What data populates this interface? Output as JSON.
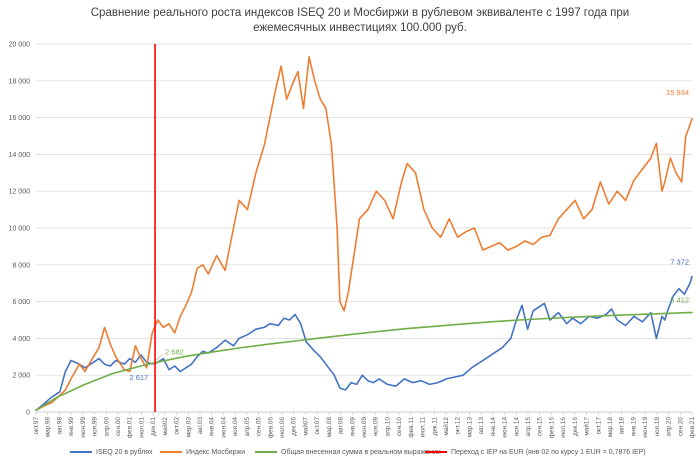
{
  "chart_data": {
    "type": "line",
    "title": "Сравнение реального роста индексов ISEQ 20 и Мосбиржи в рублевом эквиваленте с 1997 года при ежемесячных инвестициях 100.000 руб.",
    "title_lines": [
      "Сравнение реального роста индексов ISEQ 20 и Мосбиржи в рублевом эквиваленте с 1997 года при",
      "ежемесячных инвестициях 100.000 руб."
    ],
    "ylim": [
      0,
      20000
    ],
    "y_ticks": [
      "0",
      "2 000",
      "4 000",
      "6 000",
      "8 000",
      "10 000",
      "12 000",
      "14 000",
      "16 000",
      "18 000",
      "20 000"
    ],
    "x_range": [
      1997.75,
      2021.17
    ],
    "x_ticks": [
      "окт.97",
      "мар.98",
      "авг.98",
      "янв.99",
      "июн.99",
      "ноя.99",
      "апр.00",
      "сен.00",
      "фев.01",
      "июл.01",
      "дек.01",
      "май02",
      "окт.02",
      "мар.03",
      "авг.03",
      "янв.04",
      "июн.04",
      "ноя.04",
      "апр.05",
      "сен.05",
      "фев.06",
      "июл.06",
      "дек.06",
      "май07",
      "окт.07",
      "мар.08",
      "авг.08",
      "янв.09",
      "июн.09",
      "ноя.09",
      "апр.10",
      "сен.10",
      "фев.11",
      "июл.11",
      "дек.11",
      "май12",
      "окт.12",
      "мар.13",
      "авг.13",
      "янв.14",
      "июн.14",
      "ноя.14",
      "апр.15",
      "сен.15",
      "фев.16",
      "июл.16",
      "дек.16",
      "май17",
      "окт.17",
      "мар.18",
      "авг.18",
      "янв.19",
      "июн.19",
      "ноя.19",
      "апр.20",
      "сен.20",
      "фев.21"
    ],
    "series": [
      {
        "name": "ISEQ 20 в рублях",
        "color": "#4472C4",
        "x": [
          1997.75,
          1998.0,
          1998.3,
          1998.6,
          1998.8,
          1999.0,
          1999.3,
          1999.5,
          1999.8,
          2000.0,
          2000.2,
          2000.4,
          2000.6,
          2000.9,
          2001.1,
          2001.3,
          2001.5,
          2001.7,
          2001.9,
          2002.1,
          2002.3,
          2002.5,
          2002.7,
          2002.9,
          2003.1,
          2003.3,
          2003.5,
          2003.7,
          2003.9,
          2004.2,
          2004.5,
          2004.8,
          2005.0,
          2005.3,
          2005.6,
          2005.9,
          2006.1,
          2006.4,
          2006.6,
          2006.8,
          2007.0,
          2007.2,
          2007.4,
          2007.7,
          2007.9,
          2008.1,
          2008.4,
          2008.6,
          2008.8,
          2009.0,
          2009.2,
          2009.4,
          2009.6,
          2009.8,
          2010.0,
          2010.3,
          2010.6,
          2010.9,
          2011.2,
          2011.5,
          2011.8,
          2012.1,
          2012.4,
          2012.7,
          2013.0,
          2013.3,
          2013.6,
          2013.9,
          2014.1,
          2014.4,
          2014.7,
          2014.9,
          2015.1,
          2015.3,
          2015.5,
          2015.7,
          2015.9,
          2016.1,
          2016.4,
          2016.7,
          2016.9,
          2017.2,
          2017.5,
          2017.8,
          2018.1,
          2018.3,
          2018.5,
          2018.8,
          2019.1,
          2019.4,
          2019.7,
          2019.9,
          2020.1,
          2020.2,
          2020.3,
          2020.5,
          2020.7,
          2020.9,
          2021.1,
          2021.17
        ],
        "values": [
          100,
          400,
          800,
          1100,
          2200,
          2800,
          2600,
          2400,
          2700,
          2900,
          2600,
          2500,
          2800,
          2600,
          2900,
          2700,
          3100,
          2700,
          2617,
          2700,
          2900,
          2300,
          2500,
          2200,
          2400,
          2600,
          3000,
          3300,
          3200,
          3500,
          3900,
          3600,
          4000,
          4200,
          4500,
          4600,
          4800,
          4700,
          5100,
          5000,
          5300,
          4800,
          3800,
          3300,
          3000,
          2600,
          2000,
          1300,
          1200,
          1600,
          1500,
          2000,
          1700,
          1600,
          1800,
          1500,
          1400,
          1800,
          1600,
          1700,
          1500,
          1600,
          1800,
          1900,
          2000,
          2400,
          2700,
          3000,
          3200,
          3500,
          4000,
          5000,
          5800,
          4500,
          5500,
          5700,
          5900,
          5000,
          5400,
          4800,
          5100,
          4800,
          5200,
          5100,
          5300,
          5600,
          5000,
          4700,
          5200,
          4900,
          5400,
          4000,
          5200,
          5000,
          5500,
          6300,
          6700,
          6400,
          7000,
          7372
        ],
        "end_label": "7 372"
      },
      {
        "name": "Индекс Мосбиржи",
        "color": "#ED7D31",
        "x": [
          1997.75,
          1998.0,
          1998.3,
          1998.6,
          1998.8,
          1999.0,
          1999.3,
          1999.5,
          1999.8,
          2000.0,
          2000.2,
          2000.4,
          2000.6,
          2000.9,
          2001.1,
          2001.3,
          2001.5,
          2001.7,
          2001.9,
          2002.1,
          2002.3,
          2002.5,
          2002.7,
          2002.9,
          2003.1,
          2003.3,
          2003.5,
          2003.7,
          2003.9,
          2004.2,
          2004.5,
          2004.8,
          2005.0,
          2005.3,
          2005.6,
          2005.9,
          2006.1,
          2006.3,
          2006.5,
          2006.7,
          2006.9,
          2007.1,
          2007.3,
          2007.5,
          2007.7,
          2007.9,
          2008.1,
          2008.3,
          2008.5,
          2008.6,
          2008.75,
          2008.9,
          2009.1,
          2009.3,
          2009.6,
          2009.9,
          2010.2,
          2010.5,
          2010.8,
          2011.0,
          2011.3,
          2011.6,
          2011.9,
          2012.2,
          2012.5,
          2012.8,
          2013.1,
          2013.4,
          2013.7,
          2014.0,
          2014.3,
          2014.6,
          2014.9,
          2015.2,
          2015.5,
          2015.8,
          2016.1,
          2016.4,
          2016.7,
          2017.0,
          2017.3,
          2017.6,
          2017.9,
          2018.2,
          2018.5,
          2018.8,
          2019.1,
          2019.4,
          2019.7,
          2019.9,
          2020.1,
          2020.2,
          2020.4,
          2020.6,
          2020.8,
          2020.95,
          2021.05,
          2021.17
        ],
        "values": [
          100,
          300,
          500,
          900,
          1200,
          1800,
          2600,
          2200,
          3000,
          3500,
          4600,
          3700,
          3000,
          2300,
          2200,
          3600,
          2900,
          2400,
          4300,
          5000,
          4600,
          4800,
          4300,
          5200,
          5800,
          6500,
          7800,
          8000,
          7500,
          8500,
          7700,
          10000,
          11500,
          11000,
          13000,
          14500,
          16000,
          17500,
          18800,
          17000,
          17800,
          18500,
          16500,
          19300,
          18000,
          17000,
          16500,
          14500,
          10000,
          6000,
          5500,
          6500,
          8500,
          10500,
          11000,
          12000,
          11500,
          10500,
          12500,
          13500,
          13000,
          11000,
          10000,
          9500,
          10500,
          9500,
          9800,
          10000,
          8800,
          9000,
          9200,
          8800,
          9000,
          9300,
          9100,
          9500,
          9600,
          10500,
          11000,
          11500,
          10500,
          11000,
          12500,
          11300,
          12000,
          11500,
          12600,
          13200,
          13800,
          14600,
          12000,
          12500,
          13800,
          13000,
          12500,
          15000,
          15400,
          15934
        ],
        "end_label": "15 934"
      },
      {
        "name": "Общая внесенная сумма в реальном выражении",
        "color": "#70AD47",
        "x": [
          1997.75,
          1998.5,
          1999.5,
          2000.5,
          2001.5,
          2002.0,
          2003.0,
          2004.0,
          2005.0,
          2006.0,
          2007.0,
          2008.0,
          2009.0,
          2010.0,
          2011.0,
          2012.0,
          2013.0,
          2014.0,
          2015.0,
          2016.0,
          2017.0,
          2018.0,
          2019.0,
          2020.0,
          2021.17
        ],
        "values": [
          100,
          800,
          1500,
          2100,
          2500,
          2682,
          3000,
          3250,
          3480,
          3680,
          3860,
          4040,
          4220,
          4380,
          4530,
          4660,
          4790,
          4900,
          5000,
          5080,
          5160,
          5230,
          5290,
          5340,
          5412
        ],
        "end_label": "5 412"
      }
    ],
    "marker": {
      "name": "Переход с IEP на EUR (янв 02 по курсу 1 EUR = 0,7876 IEP)",
      "color": "#FF0000",
      "x": 2002.0
    },
    "annotations": [
      {
        "text": "2 617",
        "series": "ISEQ 20 в рублях",
        "x": 2001.9,
        "y": 2617,
        "color": "#4472C4"
      },
      {
        "text": "2 682",
        "series": "Общая внесенная сумма в реальном выражении",
        "x": 2002.0,
        "y": 2682,
        "color": "#70AD47"
      }
    ],
    "legend_position": "bottom",
    "grid": true
  }
}
